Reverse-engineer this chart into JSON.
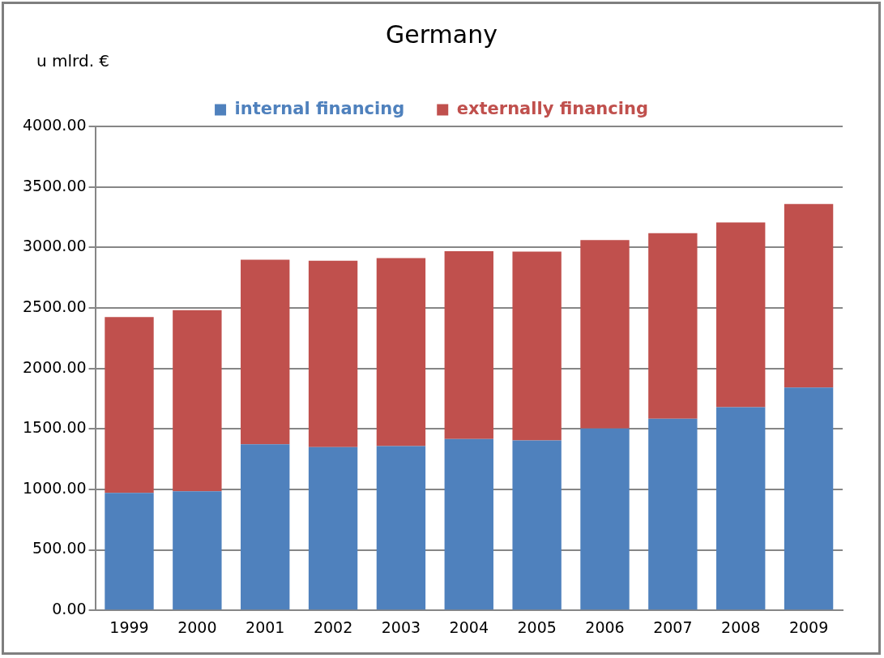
{
  "chart_data": {
    "type": "bar",
    "title": "Germany",
    "ylabel": "u mlrd. €",
    "categories": [
      "1999",
      "2000",
      "2001",
      "2002",
      "2003",
      "2004",
      "2005",
      "2006",
      "2007",
      "2008",
      "2009"
    ],
    "series": [
      {
        "name": "internal financing",
        "color": "#4f81bd",
        "values": [
          971,
          985,
          1372,
          1350,
          1358,
          1417,
          1405,
          1503,
          1584,
          1680,
          1841
        ]
      },
      {
        "name": "externally financing",
        "color": "#c0504d",
        "values": [
          1453,
          1496,
          1526,
          1540,
          1554,
          1552,
          1560,
          1557,
          1533,
          1527,
          1517
        ]
      }
    ],
    "stacked": true,
    "ylim": [
      0,
      4000
    ],
    "yticks": [
      {
        "value": 0,
        "label": "0.00"
      },
      {
        "value": 500,
        "label": "500.00"
      },
      {
        "value": 1000,
        "label": "1000.00"
      },
      {
        "value": 1500,
        "label": "1500.00"
      },
      {
        "value": 2000,
        "label": "2000.00"
      },
      {
        "value": 2500,
        "label": "2500.00"
      },
      {
        "value": 3000,
        "label": "3000.00"
      },
      {
        "value": 3500,
        "label": "3500.00"
      },
      {
        "value": 4000,
        "label": "4000.00"
      }
    ],
    "grid": "y",
    "legend": "top"
  }
}
